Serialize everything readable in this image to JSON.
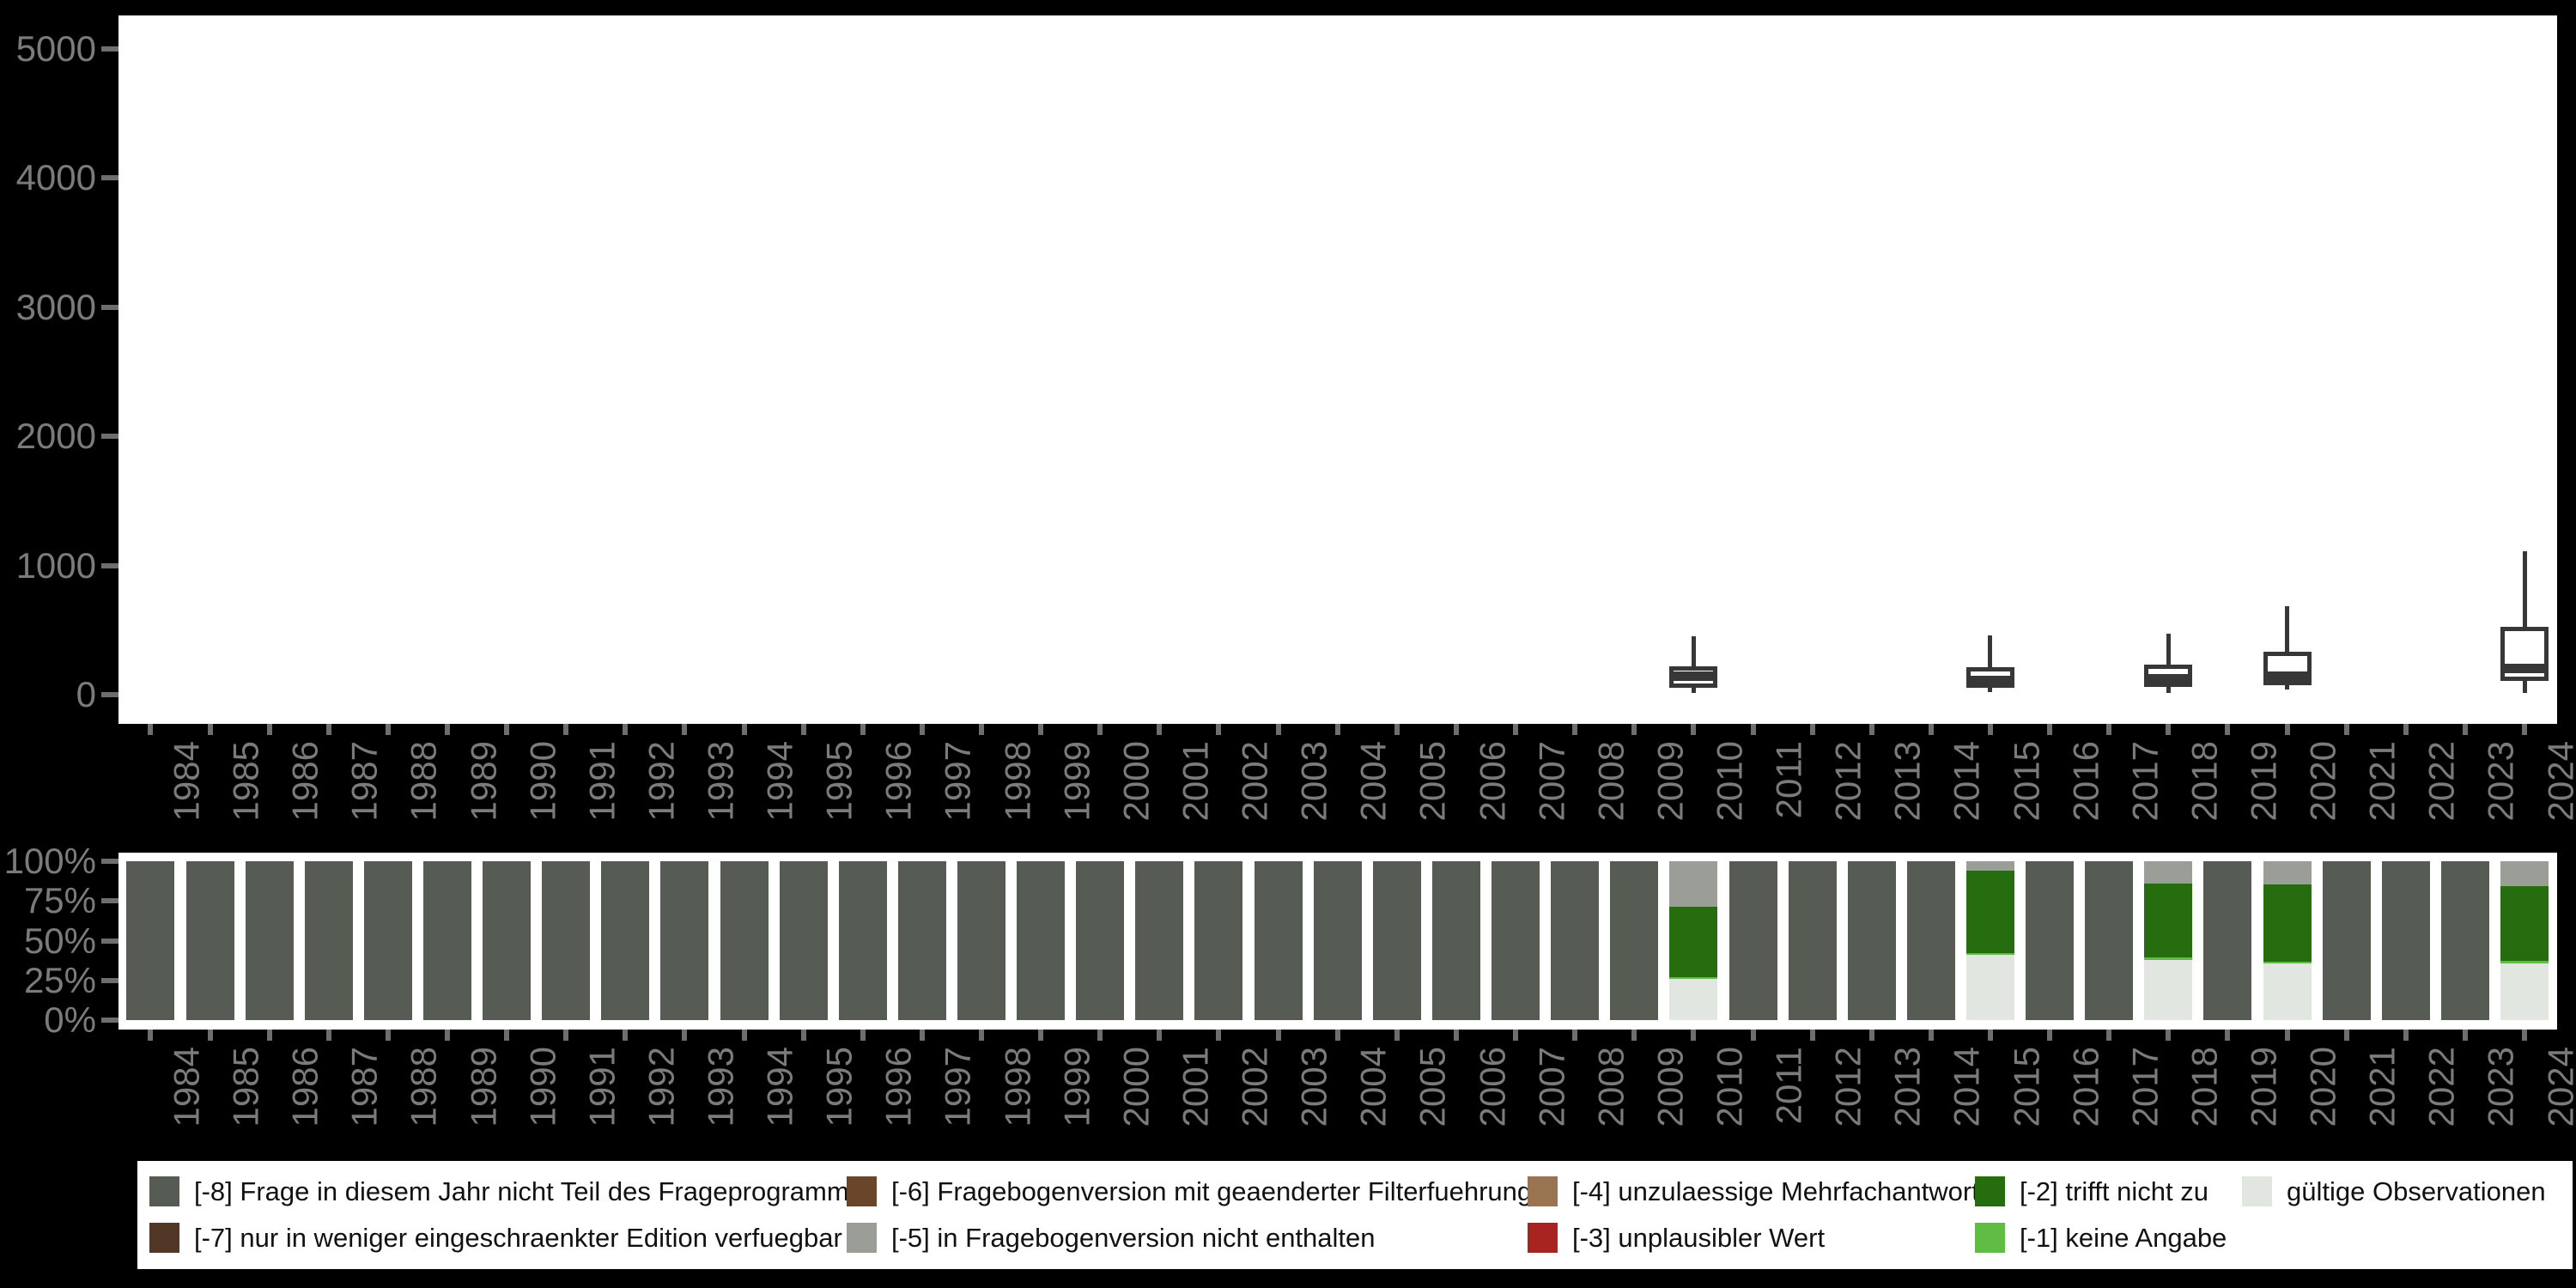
{
  "page": {
    "background": "#000000",
    "plot_background": "#ffffff",
    "axis_label_color": "#7b7b7b",
    "axis_tick_color": "#6e6e6e"
  },
  "chart_data": [
    {
      "type": "boxplot",
      "title": "",
      "xlabel": "",
      "ylabel": "",
      "ylim": [
        0,
        5000
      ],
      "yticks": [
        0,
        1000,
        2000,
        3000,
        4000,
        5000
      ],
      "grid": false,
      "box_stroke_color": "#373737",
      "box_fill_color": "#ffffff",
      "x": [
        1984,
        1985,
        1986,
        1987,
        1988,
        1989,
        1990,
        1991,
        1992,
        1993,
        1994,
        1995,
        1996,
        1997,
        1998,
        1999,
        2000,
        2001,
        2002,
        2003,
        2004,
        2005,
        2006,
        2007,
        2008,
        2009,
        2010,
        2011,
        2012,
        2013,
        2014,
        2015,
        2016,
        2017,
        2018,
        2019,
        2020,
        2021,
        2022,
        2023,
        2024
      ],
      "boxes": [
        {
          "year": 2010,
          "min": 15,
          "q1": 55,
          "median": 140,
          "q3": 220,
          "max": 450
        },
        {
          "year": 2015,
          "min": 20,
          "q1": 50,
          "median": 110,
          "q3": 215,
          "max": 460
        },
        {
          "year": 2018,
          "min": 15,
          "q1": 60,
          "median": 120,
          "q3": 235,
          "max": 470
        },
        {
          "year": 2020,
          "min": 40,
          "q1": 75,
          "median": 145,
          "q3": 330,
          "max": 685
        },
        {
          "year": 2024,
          "min": 15,
          "q1": 105,
          "median": 205,
          "q3": 525,
          "max": 1110
        }
      ]
    },
    {
      "type": "bar",
      "subtype": "stacked-percent",
      "title": "",
      "xlabel": "",
      "ylabel": "",
      "ylim": [
        0,
        100
      ],
      "ytick_labels": [
        "0%",
        "25%",
        "50%",
        "75%",
        "100%"
      ],
      "ytick_values": [
        0,
        25,
        50,
        75,
        100
      ],
      "grid": false,
      "x": [
        1984,
        1985,
        1986,
        1987,
        1988,
        1989,
        1990,
        1991,
        1992,
        1993,
        1994,
        1995,
        1996,
        1997,
        1998,
        1999,
        2000,
        2001,
        2002,
        2003,
        2004,
        2005,
        2006,
        2007,
        2008,
        2009,
        2010,
        2011,
        2012,
        2013,
        2014,
        2015,
        2016,
        2017,
        2018,
        2019,
        2020,
        2021,
        2022,
        2023,
        2024
      ],
      "segments_bottom_to_top": [
        "valid",
        "keine_angabe_1",
        "trifft_nicht_zu_2",
        "nicht_enthalten_5",
        "nicht_teil_programm_8"
      ],
      "segment_colors": {
        "valid": "#e2e6e0",
        "keine_angabe_1": "#61bc46",
        "trifft_nicht_zu_2": "#256d0f",
        "nicht_enthalten_5": "#9a9e97",
        "nicht_teil_programm_8": "#565b54"
      },
      "bars": {
        "default": {
          "nicht_teil_programm_8": 100
        },
        "2010": {
          "valid": 26.0,
          "keine_angabe_1": 1.2,
          "trifft_nicht_zu_2": 44.0,
          "nicht_enthalten_5": 28.8
        },
        "2015": {
          "valid": 41.0,
          "keine_angabe_1": 1.2,
          "trifft_nicht_zu_2": 52.0,
          "nicht_enthalten_5": 5.8
        },
        "2018": {
          "valid": 38.0,
          "keine_angabe_1": 1.5,
          "trifft_nicht_zu_2": 46.5,
          "nicht_enthalten_5": 14.0
        },
        "2020": {
          "valid": 35.5,
          "keine_angabe_1": 1.5,
          "trifft_nicht_zu_2": 48.5,
          "nicht_enthalten_5": 14.5
        },
        "2024": {
          "valid": 35.5,
          "keine_angabe_1": 2.0,
          "trifft_nicht_zu_2": 47.0,
          "nicht_enthalten_5": 15.5
        }
      }
    }
  ],
  "legend": {
    "position": "bottom",
    "background": "#ffffff",
    "items": [
      {
        "label": "[-8] Frage in diesem Jahr nicht Teil des Frageprogramms",
        "color": "#565b54",
        "col": 0,
        "row": 0
      },
      {
        "label": "[-7] nur in weniger eingeschraenkter Edition verfuegbar",
        "color": "#523626",
        "col": 0,
        "row": 1
      },
      {
        "label": "[-6] Fragebogenversion mit geaenderter Filterfuehrung",
        "color": "#6b452a",
        "col": 1,
        "row": 0
      },
      {
        "label": "[-5] in Fragebogenversion nicht enthalten",
        "color": "#9a9e97",
        "col": 1,
        "row": 1
      },
      {
        "label": "[-4] unzulaessige Mehrfachantwort",
        "color": "#9a7450",
        "col": 2,
        "row": 0
      },
      {
        "label": "[-3] unplausibler Wert",
        "color": "#a82420",
        "col": 2,
        "row": 1
      },
      {
        "label": "[-2] trifft nicht zu",
        "color": "#256d0f",
        "col": 3,
        "row": 0
      },
      {
        "label": "[-1] keine Angabe",
        "color": "#61bc46",
        "col": 3,
        "row": 1
      },
      {
        "label": "gültige Observationen",
        "color": "#e2e6e0",
        "col": 4,
        "row": 0
      }
    ]
  }
}
